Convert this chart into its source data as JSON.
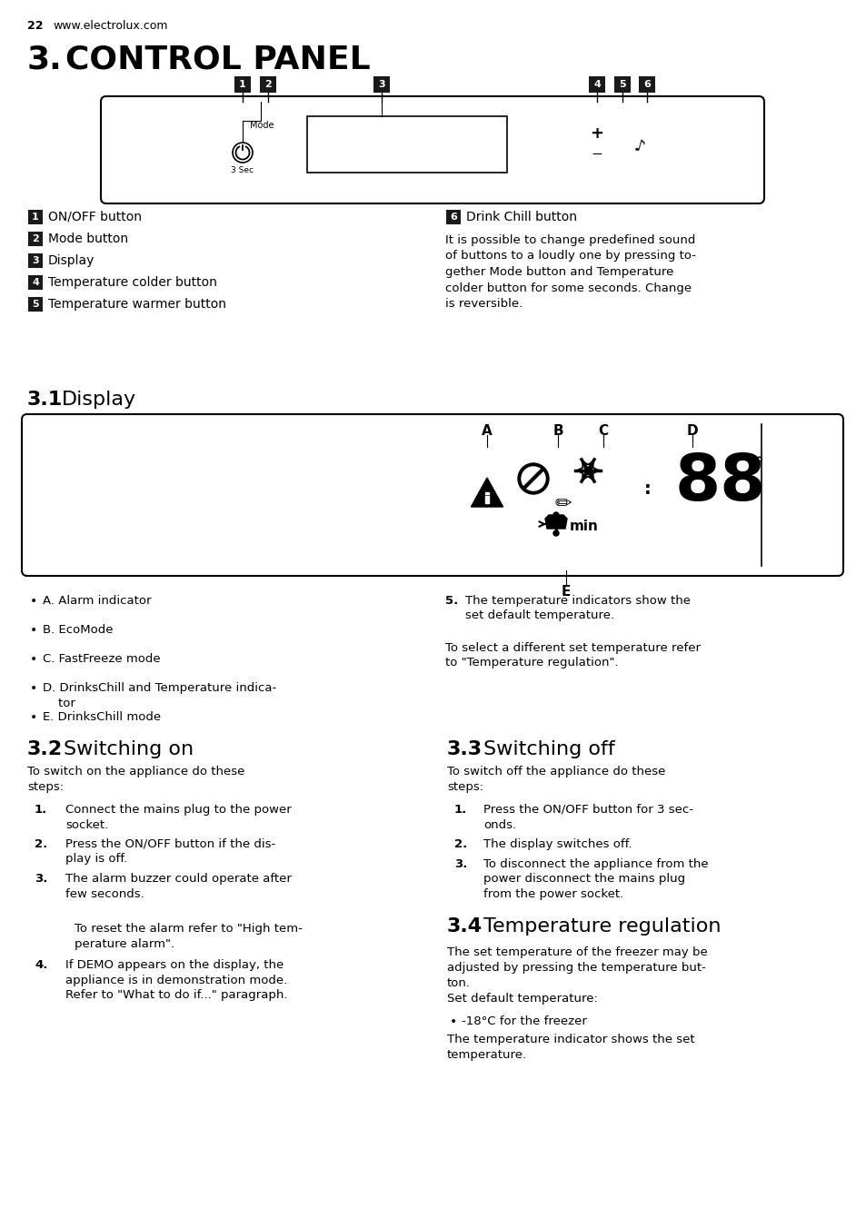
{
  "page_num": "22",
  "website": "www.electrolux.com",
  "section_title_num": "3.",
  "section_title": " CONTROL PANEL",
  "subsection_31_num": "3.1",
  "subsection_31": " Display",
  "subsection_32_num": "3.2",
  "subsection_32": " Switching on",
  "subsection_33_num": "3.3",
  "subsection_33": " Switching off",
  "subsection_34_num": "3.4",
  "subsection_34": " Temperature regulation",
  "left_items": [
    [
      "1",
      "ON/OFF button"
    ],
    [
      "2",
      "Mode button"
    ],
    [
      "3",
      "Display"
    ],
    [
      "4",
      "Temperature colder button"
    ],
    [
      "5",
      "Temperature warmer button"
    ]
  ],
  "right_item_num": "6",
  "right_item": "Drink Chill button",
  "right_item_desc": "It is possible to change predefined sound\nof buttons to a loudly one by pressing to-\ngether Mode button and Temperature\ncolder button for some seconds. Change\nis reversible.",
  "display_bullets_left": [
    "A. Alarm indicator",
    "B. EcoMode",
    "C. FastFreeze mode",
    "D. DrinksChill and Temperature indica-\n    tor",
    "E. DrinksChill mode"
  ],
  "right_bullet_num": "5.",
  "right_bullet_text": "The temperature indicators show the\nset default temperature.",
  "right_para": "To select a different set temperature refer\nto \"Temperature regulation\".",
  "s32_intro": "To switch on the appliance do these\nsteps:",
  "s32_steps": [
    [
      "1.",
      "Connect the mains plug to the power\nsocket."
    ],
    [
      "2.",
      "Press the ON/OFF button if the dis-\nplay is off."
    ],
    [
      "3.",
      "The alarm buzzer could operate after\nfew seconds."
    ],
    [
      "",
      "To reset the alarm refer to \"High tem-\nperature alarm\"."
    ],
    [
      "4.",
      "If DEMO appears on the display, the\nappliance is in demonstration mode.\nRefer to \"What to do if...\" paragraph."
    ]
  ],
  "s33_intro": "To switch off the appliance do these\nsteps:",
  "s33_steps": [
    [
      "1.",
      "Press the ON/OFF button for 3 sec-\nonds."
    ],
    [
      "2.",
      "The display switches off."
    ],
    [
      "3.",
      "To disconnect the appliance from the\npower disconnect the mains plug\nfrom the power socket."
    ]
  ],
  "s34_intro": "The set temperature of the freezer may be\nadjusted by pressing the temperature but-\nton.\nSet default temperature:",
  "s34_bullet": "-18°C for the freezer",
  "s34_outro": "The temperature indicator shows the set\ntemperature.",
  "bg_color": "#ffffff",
  "text_color": "#000000",
  "badge_color": "#1a1a1a"
}
